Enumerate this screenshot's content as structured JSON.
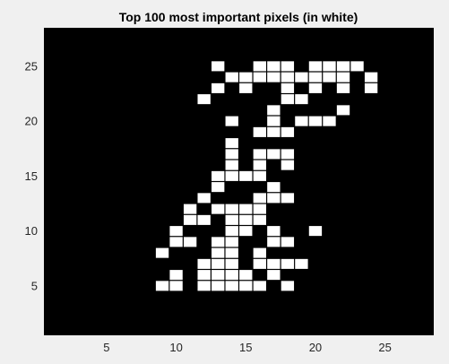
{
  "chart_data": {
    "type": "heatmap",
    "title": "Top 100 most important pixels (in white)",
    "xlabel": "",
    "ylabel": "",
    "xlim": [
      0.5,
      28.5
    ],
    "ylim": [
      0.5,
      28.5
    ],
    "y_direction": "normal",
    "x_ticks": [
      5,
      10,
      15,
      20,
      25
    ],
    "y_ticks": [
      5,
      10,
      15,
      20,
      25
    ],
    "grid": false,
    "legend": "none",
    "colors": {
      "background": "#000000",
      "cell": "#ffffff",
      "figure": "#f0f0f0"
    },
    "white_pixels": [
      [
        13,
        25
      ],
      [
        16,
        25
      ],
      [
        17,
        25
      ],
      [
        18,
        25
      ],
      [
        20,
        25
      ],
      [
        21,
        25
      ],
      [
        22,
        25
      ],
      [
        23,
        25
      ],
      [
        14,
        24
      ],
      [
        15,
        24
      ],
      [
        16,
        24
      ],
      [
        17,
        24
      ],
      [
        18,
        24
      ],
      [
        19,
        24
      ],
      [
        20,
        24
      ],
      [
        21,
        24
      ],
      [
        22,
        24
      ],
      [
        24,
        24
      ],
      [
        13,
        23
      ],
      [
        15,
        23
      ],
      [
        18,
        23
      ],
      [
        20,
        23
      ],
      [
        22,
        23
      ],
      [
        24,
        23
      ],
      [
        12,
        22
      ],
      [
        18,
        22
      ],
      [
        19,
        22
      ],
      [
        17,
        21
      ],
      [
        22,
        21
      ],
      [
        14,
        20
      ],
      [
        17,
        20
      ],
      [
        19,
        20
      ],
      [
        20,
        20
      ],
      [
        21,
        20
      ],
      [
        16,
        19
      ],
      [
        17,
        19
      ],
      [
        18,
        19
      ],
      [
        14,
        18
      ],
      [
        14,
        17
      ],
      [
        16,
        17
      ],
      [
        17,
        17
      ],
      [
        18,
        17
      ],
      [
        14,
        16
      ],
      [
        16,
        16
      ],
      [
        18,
        16
      ],
      [
        13,
        15
      ],
      [
        14,
        15
      ],
      [
        15,
        15
      ],
      [
        16,
        15
      ],
      [
        13,
        14
      ],
      [
        17,
        14
      ],
      [
        12,
        13
      ],
      [
        16,
        13
      ],
      [
        17,
        13
      ],
      [
        18,
        13
      ],
      [
        11,
        12
      ],
      [
        13,
        12
      ],
      [
        14,
        12
      ],
      [
        15,
        12
      ],
      [
        16,
        12
      ],
      [
        11,
        11
      ],
      [
        12,
        11
      ],
      [
        14,
        11
      ],
      [
        15,
        11
      ],
      [
        16,
        11
      ],
      [
        10,
        10
      ],
      [
        14,
        10
      ],
      [
        15,
        10
      ],
      [
        17,
        10
      ],
      [
        20,
        10
      ],
      [
        10,
        9
      ],
      [
        11,
        9
      ],
      [
        13,
        9
      ],
      [
        14,
        9
      ],
      [
        17,
        9
      ],
      [
        18,
        9
      ],
      [
        9,
        8
      ],
      [
        13,
        8
      ],
      [
        14,
        8
      ],
      [
        16,
        8
      ],
      [
        12,
        7
      ],
      [
        13,
        7
      ],
      [
        14,
        7
      ],
      [
        16,
        7
      ],
      [
        17,
        7
      ],
      [
        18,
        7
      ],
      [
        19,
        7
      ],
      [
        10,
        6
      ],
      [
        12,
        6
      ],
      [
        13,
        6
      ],
      [
        14,
        6
      ],
      [
        15,
        6
      ],
      [
        17,
        6
      ],
      [
        9,
        5
      ],
      [
        10,
        5
      ],
      [
        12,
        5
      ],
      [
        13,
        5
      ],
      [
        14,
        5
      ],
      [
        15,
        5
      ],
      [
        16,
        5
      ],
      [
        18,
        5
      ]
    ]
  }
}
